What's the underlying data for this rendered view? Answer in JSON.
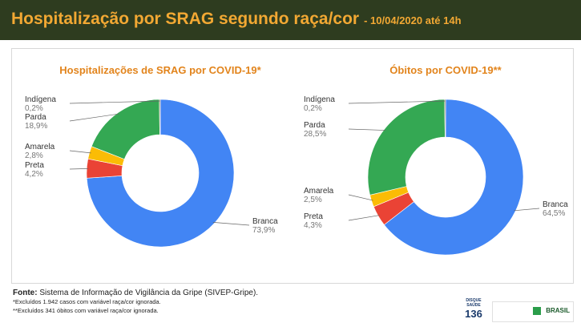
{
  "header": {
    "title": "Hospitalização por SRAG segundo raça/cor",
    "subtitle": "- 10/04/2020 até 14h"
  },
  "colors": {
    "header_bg": "#2e3c1f",
    "title": "#f2a833",
    "chart_title": "#e2841c",
    "Branca": "#4285f4",
    "Preta": "#ea4335",
    "Amarela": "#fbbc05",
    "Parda": "#34a853",
    "Indígena": "#8d6e4e"
  },
  "chart_data": [
    {
      "type": "pie",
      "title": "Hospitalizações de SRAG por COVID-19*",
      "categories": [
        "Branca",
        "Preta",
        "Amarela",
        "Parda",
        "Indígena"
      ],
      "values": [
        73.9,
        4.2,
        2.8,
        18.9,
        0.2
      ],
      "labels": [
        "73,9%",
        "4,2%",
        "2,8%",
        "18,9%",
        "0,2%"
      ],
      "hole": "donut"
    },
    {
      "type": "pie",
      "title": "Óbitos por COVID-19**",
      "categories": [
        "Branca",
        "Preta",
        "Amarela",
        "Parda",
        "Indígena"
      ],
      "values": [
        64.5,
        4.3,
        2.5,
        28.5,
        0.2
      ],
      "labels": [
        "64,5%",
        "4,3%",
        "2,5%",
        "28,5%",
        "0,2%"
      ],
      "hole": "donut"
    }
  ],
  "footer": {
    "source_label": "Fonte:",
    "source_text": "Sistema de Informação de Vigilância da Gripe (SIVEP-Gripe).",
    "note1": "*Excluídos 1.942 casos com variável raça/cor ignorada.",
    "note2": "**Excluídos 341 óbitos com variável raça/cor ignorada."
  },
  "logos": {
    "disque_top": "DISQUE SAÚDE",
    "disque_num": "136",
    "gov_name": "BRASIL"
  }
}
